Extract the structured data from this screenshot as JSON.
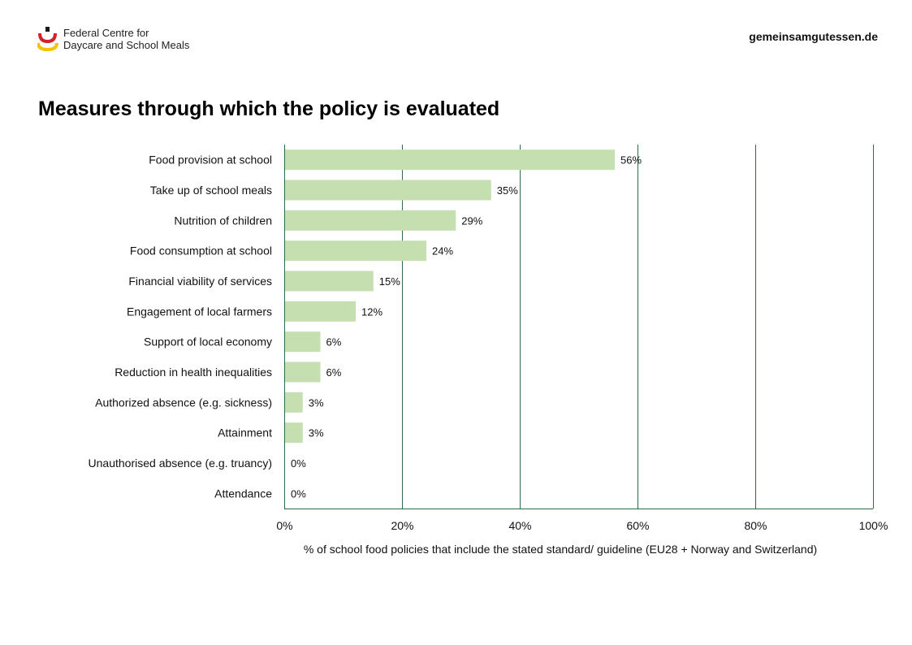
{
  "header": {
    "org_line1": "Federal Centre for",
    "org_line2": "Daycare and School Meals",
    "website": "gemeinsamgutessen.de",
    "logo_colors": [
      "#1a1a1a",
      "#d2232a",
      "#f4c300"
    ]
  },
  "chart_data": {
    "type": "bar",
    "orientation": "horizontal",
    "title": "Measures through which the policy is evaluated",
    "xlabel": "% of school food policies that include the stated standard/ guideline (EU28 + Norway and Switzerland)",
    "ylabel": "",
    "categories": [
      "Food provision at school",
      "Take up of school meals",
      "Nutrition of children",
      "Food consumption at school",
      "Financial viability of services",
      "Engagement of local farmers",
      "Support of local economy",
      "Reduction in health inequalities",
      "Authorized absence (e.g. sickness)",
      "Attainment",
      "Unauthorised absence (e.g. truancy)",
      "Attendance"
    ],
    "values": [
      56,
      35,
      29,
      24,
      15,
      12,
      6,
      6,
      3,
      3,
      0,
      0
    ],
    "data_labels": [
      "56%",
      "35%",
      "29%",
      "24%",
      "15%",
      "12%",
      "6%",
      "6%",
      "3%",
      "3%",
      "0%",
      "0%"
    ],
    "xlim": [
      0,
      100
    ],
    "xticks": [
      0,
      20,
      40,
      60,
      80,
      100
    ],
    "xtick_labels": [
      "0%",
      "20%",
      "40%",
      "60%",
      "80%",
      "100%"
    ],
    "grid": "vertical",
    "legend": "none",
    "bar_color": "#c6dfb0",
    "grid_color": "#2e6b46"
  }
}
